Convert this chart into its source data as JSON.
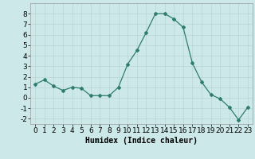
{
  "x": [
    0,
    1,
    2,
    3,
    4,
    5,
    6,
    7,
    8,
    9,
    10,
    11,
    12,
    13,
    14,
    15,
    16,
    17,
    18,
    19,
    20,
    21,
    22,
    23
  ],
  "y": [
    1.3,
    1.7,
    1.1,
    0.7,
    1.0,
    0.9,
    0.2,
    0.2,
    0.2,
    1.0,
    3.2,
    4.5,
    6.2,
    8.0,
    8.0,
    7.5,
    6.7,
    3.3,
    1.5,
    0.3,
    -0.1,
    -0.9,
    -2.1,
    -0.9
  ],
  "line_color": "#2e7d6e",
  "marker": "D",
  "markersize": 2.0,
  "linewidth": 0.9,
  "xlabel": "Humidex (Indice chaleur)",
  "xlim": [
    -0.5,
    23.5
  ],
  "ylim": [
    -2.5,
    9.0
  ],
  "yticks": [
    -2,
    -1,
    0,
    1,
    2,
    3,
    4,
    5,
    6,
    7,
    8
  ],
  "xticks": [
    0,
    1,
    2,
    3,
    4,
    5,
    6,
    7,
    8,
    9,
    10,
    11,
    12,
    13,
    14,
    15,
    16,
    17,
    18,
    19,
    20,
    21,
    22,
    23
  ],
  "bg_color": "#cce8e8",
  "grid_color": "#b8d4d4",
  "xlabel_fontsize": 7,
  "tick_fontsize": 6.5
}
